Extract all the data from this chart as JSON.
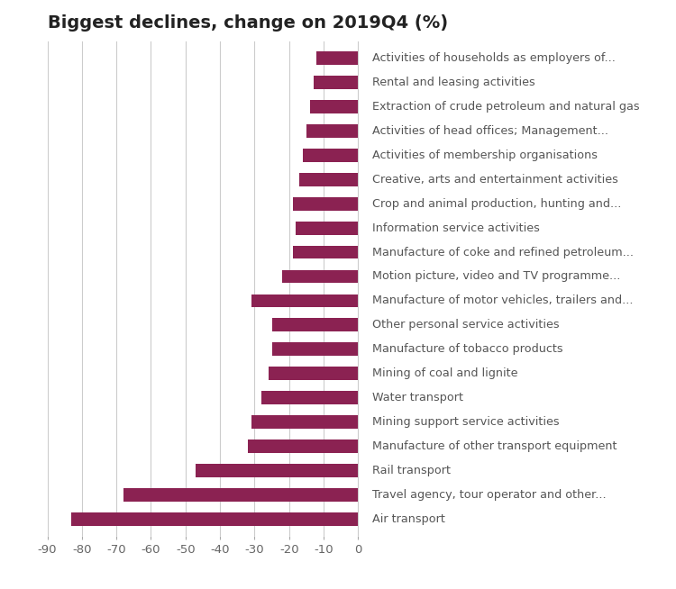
{
  "title": "Biggest declines, change on 2019Q4 (%)",
  "categories": [
    "Air transport",
    "Travel agency, tour operator and other...",
    "Rail transport",
    "Manufacture of other transport equipment",
    "Mining support service activities",
    "Water transport",
    "Mining of coal and lignite",
    "Manufacture of tobacco products",
    "Other personal service activities",
    "Manufacture of motor vehicles, trailers and...",
    "Motion picture, video and TV programme...",
    "Manufacture of coke and refined petroleum...",
    "Information service activities",
    "Crop and animal production, hunting and...",
    "Creative, arts and entertainment activities",
    "Activities of membership organisations",
    "Activities of head offices; Management...",
    "Extraction of crude petroleum and natural gas",
    "Rental and leasing activities",
    "Activities of households as employers of..."
  ],
  "values": [
    -83,
    -68,
    -47,
    -32,
    -31,
    -28,
    -26,
    -25,
    -25,
    -31,
    -22,
    -19,
    -18,
    -19,
    -17,
    -16,
    -15,
    -14,
    -13,
    -12
  ],
  "bar_color": "#8B2252",
  "background_color": "#ffffff",
  "grid_color": "#cccccc",
  "xlim": [
    -90,
    2
  ],
  "xticks": [
    -90,
    -80,
    -70,
    -60,
    -50,
    -40,
    -30,
    -20,
    -10,
    0
  ],
  "title_fontsize": 14,
  "label_fontsize": 9.2,
  "tick_fontsize": 9.5
}
